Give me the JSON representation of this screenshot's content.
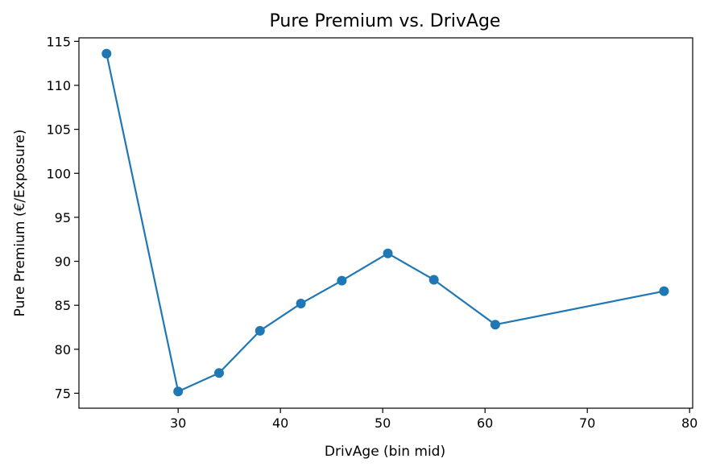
{
  "chart_data": {
    "type": "line",
    "title": "Pure Premium vs. DrivAge",
    "xlabel": "DrivAge (bin mid)",
    "ylabel": "Pure Premium (€/Exposure)",
    "xlim": [
      20.3,
      80.3
    ],
    "ylim": [
      73.3,
      115.4
    ],
    "xticks": [
      30,
      40,
      50,
      60,
      70,
      80
    ],
    "yticks": [
      75,
      80,
      85,
      90,
      95,
      100,
      105,
      110,
      115
    ],
    "grid": false,
    "legend": "none",
    "series": [
      {
        "color": "#1f77b4",
        "marker": "circle",
        "x": [
          23,
          30,
          34,
          38,
          42,
          46,
          50.5,
          55,
          61,
          77.5
        ],
        "y": [
          113.6,
          75.2,
          77.3,
          82.1,
          85.2,
          87.8,
          90.9,
          87.9,
          82.8,
          86.6
        ]
      }
    ]
  }
}
